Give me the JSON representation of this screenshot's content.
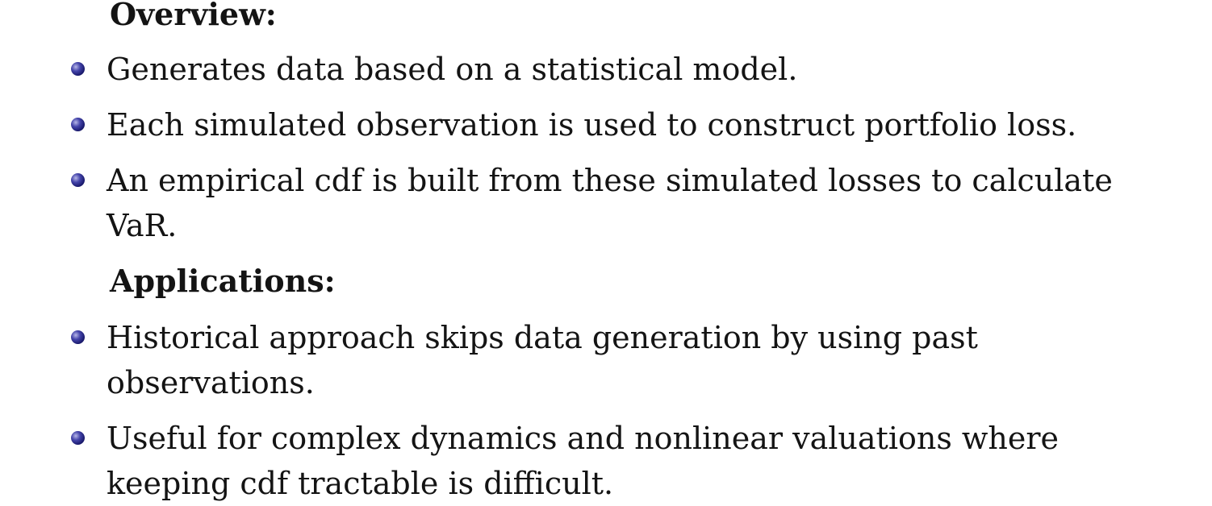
{
  "sections": [
    {
      "heading": "Overview:",
      "items": [
        "Generates data based on a statistical model.",
        "Each simulated observation is used to construct portfolio loss.",
        "An empirical cdf is built from these simulated losses to calculate VaR."
      ]
    },
    {
      "heading": "Applications:",
      "items": [
        "Historical approach skips data generation by using past observations.",
        "Useful for complex dynamics and nonlinear valuations where keeping cdf tractable is difficult."
      ]
    }
  ],
  "colors": {
    "bullet": "#1a1a6e",
    "text": "#141414"
  }
}
